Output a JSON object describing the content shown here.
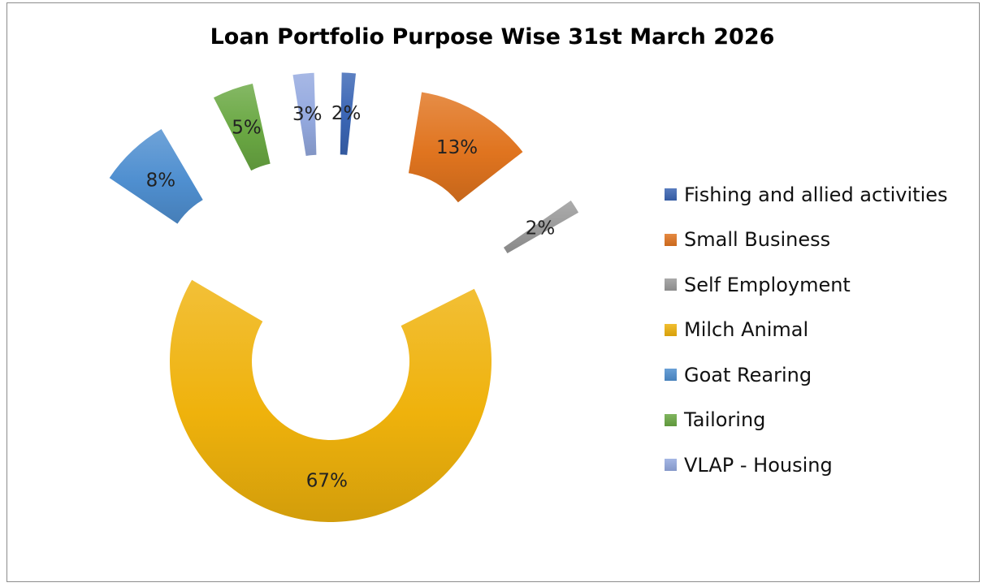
{
  "chart_data": {
    "type": "donut",
    "title": "Loan Portfolio Purpose Wise 31st March 2026",
    "unit": "%",
    "legend_position": "right",
    "slices": [
      {
        "name": "Fishing and allied activities",
        "value": 2,
        "label": "2%",
        "color": "#3a65b4"
      },
      {
        "name": "Small Business",
        "value": 13,
        "label": "13%",
        "color": "#e0741f"
      },
      {
        "name": "Self Employment",
        "value": 2,
        "label": "2%",
        "color": "#9a9a9a"
      },
      {
        "name": "Milch Animal",
        "value": 67,
        "label": "67%",
        "color": "#efb20c"
      },
      {
        "name": "Goat Rearing",
        "value": 8,
        "label": "8%",
        "color": "#4f8fd0"
      },
      {
        "name": "Tailoring",
        "value": 5,
        "label": "5%",
        "color": "#6aa843"
      },
      {
        "name": "VLAP - Housing",
        "value": 3,
        "label": "3%",
        "color": "#94a9df"
      }
    ]
  }
}
